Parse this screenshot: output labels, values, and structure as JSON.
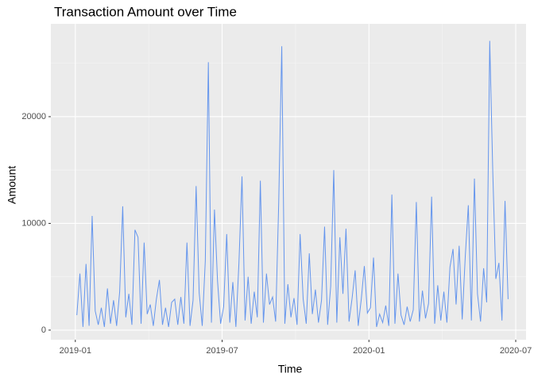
{
  "chart_data": {
    "type": "line",
    "title": "Transaction Amount over Time",
    "x_label": "Time",
    "y_label": "Amount",
    "x": [
      "2019-01",
      "2019-01",
      "2019-01",
      "2019-01",
      "2019-01",
      "2019-01",
      "2019-01",
      "2019-01",
      "2019-02",
      "2019-02",
      "2019-02",
      "2019-02",
      "2019-02",
      "2019-02",
      "2019-02",
      "2019-02",
      "2019-03",
      "2019-03",
      "2019-03",
      "2019-03",
      "2019-03",
      "2019-03",
      "2019-03",
      "2019-03",
      "2019-04",
      "2019-04",
      "2019-04",
      "2019-04",
      "2019-04",
      "2019-04",
      "2019-04",
      "2019-04",
      "2019-05",
      "2019-05",
      "2019-05",
      "2019-05",
      "2019-05",
      "2019-05",
      "2019-05",
      "2019-05",
      "2019-06",
      "2019-06",
      "2019-06",
      "2019-06",
      "2019-06",
      "2019-06",
      "2019-06",
      "2019-06",
      "2019-07",
      "2019-07",
      "2019-07",
      "2019-07",
      "2019-07",
      "2019-07",
      "2019-07",
      "2019-07",
      "2019-08",
      "2019-08",
      "2019-08",
      "2019-08",
      "2019-08",
      "2019-08",
      "2019-08",
      "2019-08",
      "2019-09",
      "2019-09",
      "2019-09",
      "2019-09",
      "2019-09",
      "2019-09",
      "2019-09",
      "2019-09",
      "2019-10",
      "2019-10",
      "2019-10",
      "2019-10",
      "2019-10",
      "2019-10",
      "2019-10",
      "2019-10",
      "2019-11",
      "2019-11",
      "2019-11",
      "2019-11",
      "2019-11",
      "2019-11",
      "2019-11",
      "2019-11",
      "2019-12",
      "2019-12",
      "2019-12",
      "2019-12",
      "2019-12",
      "2019-12",
      "2019-12",
      "2019-12",
      "2020-01",
      "2020-01",
      "2020-01",
      "2020-01",
      "2020-01",
      "2020-01",
      "2020-01",
      "2020-01",
      "2020-02",
      "2020-02",
      "2020-02",
      "2020-02",
      "2020-02",
      "2020-02",
      "2020-02",
      "2020-02",
      "2020-03",
      "2020-03",
      "2020-03",
      "2020-03",
      "2020-03",
      "2020-03",
      "2020-03",
      "2020-03",
      "2020-04",
      "2020-04",
      "2020-04",
      "2020-04",
      "2020-04",
      "2020-04",
      "2020-04",
      "2020-04",
      "2020-05",
      "2020-05",
      "2020-05",
      "2020-05",
      "2020-05",
      "2020-05",
      "2020-05",
      "2020-05",
      "2020-06",
      "2020-06",
      "2020-06",
      "2020-06",
      "2020-06",
      "2020-06",
      "2020-06",
      "2020-06"
    ],
    "values": [
      1400,
      5300,
      300,
      6200,
      400,
      10700,
      1800,
      500,
      2100,
      300,
      3900,
      600,
      2800,
      400,
      3600,
      11600,
      1200,
      3400,
      500,
      9400,
      8700,
      600,
      8200,
      1500,
      2400,
      400,
      2900,
      4700,
      500,
      2100,
      300,
      2600,
      2900,
      500,
      3100,
      600,
      8200,
      400,
      2800,
      13500,
      3500,
      400,
      6500,
      25100,
      700,
      11300,
      4600,
      600,
      2200,
      9000,
      700,
      4500,
      300,
      6300,
      14400,
      900,
      5000,
      600,
      3600,
      1200,
      14000,
      700,
      5300,
      2400,
      3100,
      800,
      11900,
      26600,
      600,
      4300,
      1200,
      3000,
      500,
      9000,
      2900,
      600,
      7200,
      1500,
      3800,
      700,
      2800,
      9700,
      500,
      4100,
      15000,
      700,
      8700,
      3400,
      9500,
      800,
      3000,
      5600,
      400,
      2900,
      6000,
      1600,
      2100,
      6800,
      300,
      1500,
      700,
      2300,
      400,
      12700,
      600,
      5300,
      1400,
      500,
      2200,
      800,
      1900,
      12000,
      800,
      3700,
      1100,
      2500,
      12500,
      600,
      4200,
      900,
      3600,
      700,
      5900,
      7600,
      2400,
      7900,
      1000,
      6900,
      11700,
      900,
      14200,
      3400,
      800,
      5800,
      2600,
      27100,
      14800,
      4800,
      6300,
      900,
      12100,
      2900,
      null,
      null
    ],
    "color": "#6495ed",
    "xlim": [
      "2018-12",
      "2020-07"
    ],
    "xticks": [
      "2019-01",
      "2019-07",
      "2020-01",
      "2020-07"
    ],
    "ylim": [
      -900,
      28700
    ],
    "yticks": [
      0,
      10000,
      20000
    ],
    "grid": true
  }
}
